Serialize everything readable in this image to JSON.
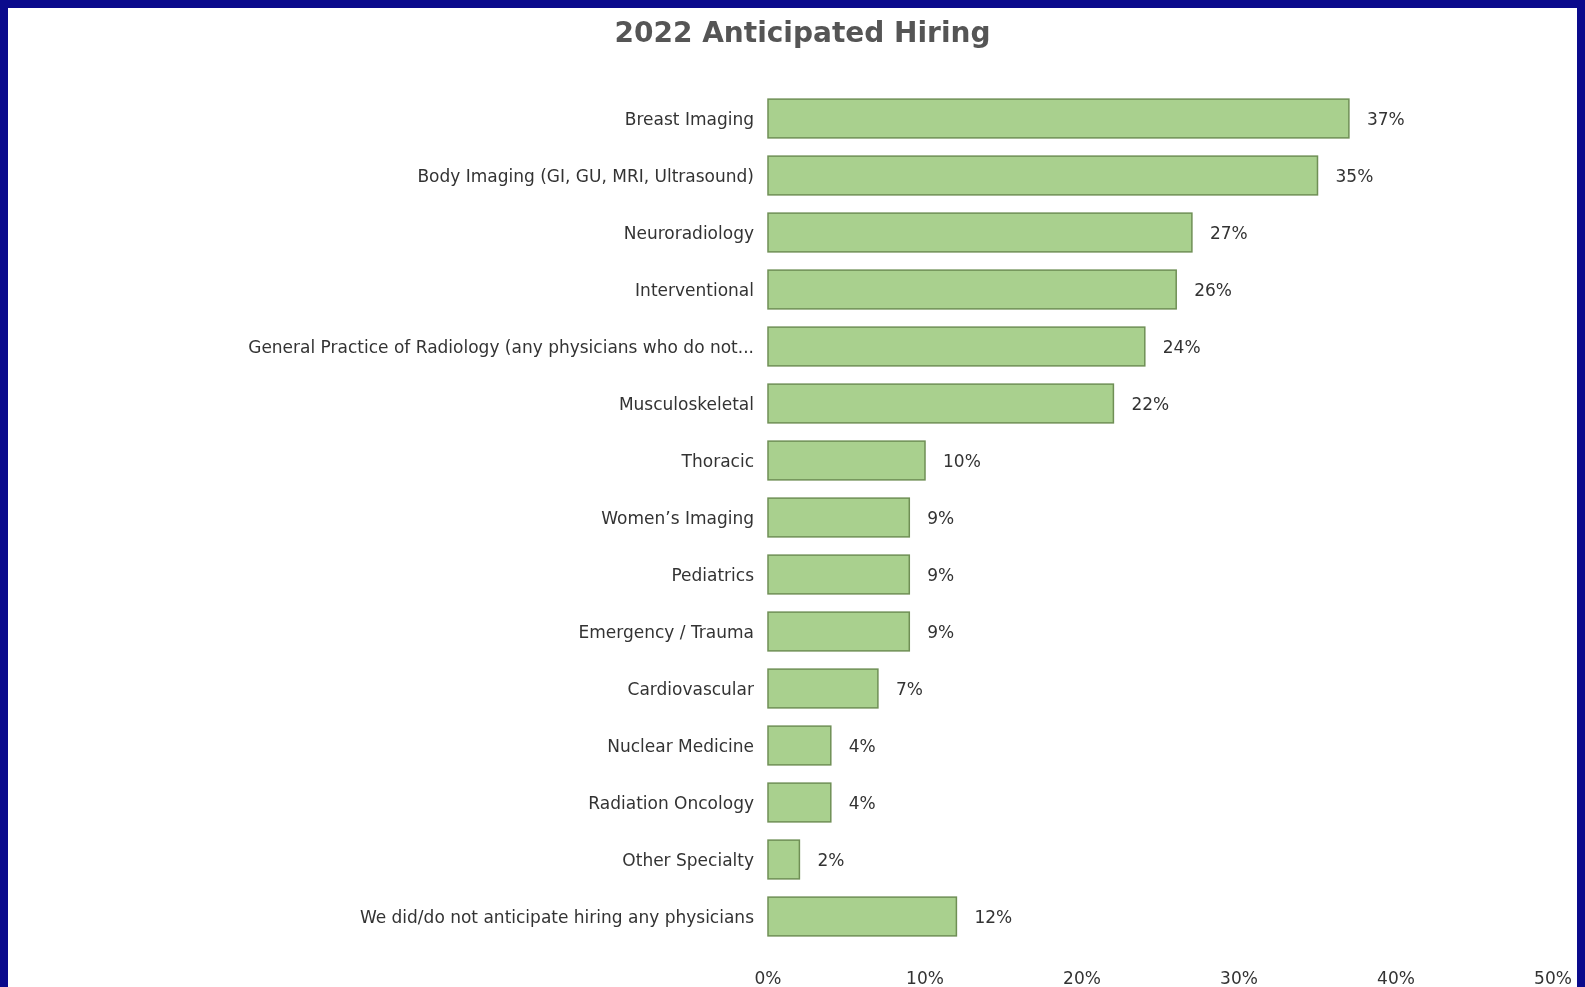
{
  "chart_data": {
    "type": "bar",
    "orientation": "horizontal",
    "title": "2022 Anticipated Hiring",
    "categories": [
      "Breast Imaging",
      "Body Imaging (GI, GU, MRI, Ultrasound)",
      "Neuroradiology",
      "Interventional",
      "General Practice of Radiology (any physicians who do not...",
      "Musculoskeletal",
      "Thoracic",
      "Women’s Imaging",
      "Pediatrics",
      "Emergency / Trauma",
      "Cardiovascular",
      "Nuclear Medicine",
      "Radiation Oncology",
      "Other Specialty",
      "We did/do not anticipate hiring any physicians"
    ],
    "values": [
      37,
      35,
      27,
      26,
      24,
      22,
      10,
      9,
      9,
      9,
      7,
      4,
      4,
      2,
      12
    ],
    "value_labels": [
      "37%",
      "35%",
      "27%",
      "26%",
      "24%",
      "22%",
      "10%",
      "9%",
      "9%",
      "9%",
      "7%",
      "4%",
      "4%",
      "2%",
      "12%"
    ],
    "color": "#a9d08e",
    "xlim": [
      0,
      50
    ],
    "xticks": [
      {
        "value": 0,
        "label": "0%"
      },
      {
        "value": 10,
        "label": "10%"
      },
      {
        "value": 20,
        "label": "20%"
      },
      {
        "value": 30,
        "label": "30%"
      },
      {
        "value": 40,
        "label": "40%"
      },
      {
        "value": 50,
        "label": "50%"
      }
    ],
    "grid": false
  }
}
